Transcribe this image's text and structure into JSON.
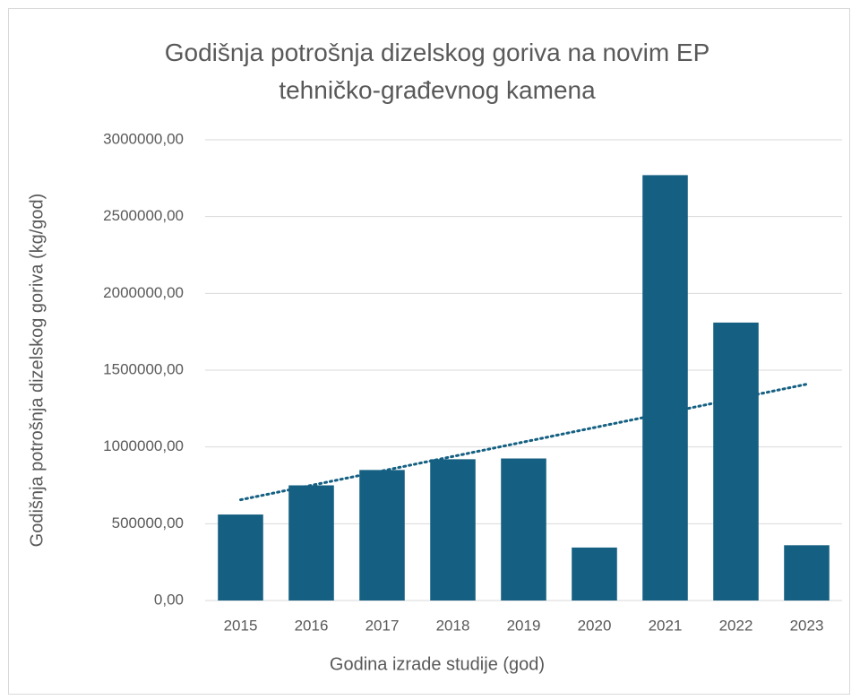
{
  "chart_data": {
    "type": "bar",
    "title": "Godišnja potrošnja dizelskog goriva na novim EP tehničko-građevnog kamena",
    "x_label": "Godina izrade studije (god)",
    "y_label": "Godišnja potrošnja dizelskog goriva (kg/god)",
    "categories": [
      "2015",
      "2016",
      "2017",
      "2018",
      "2019",
      "2020",
      "2021",
      "2022",
      "2023"
    ],
    "values": [
      560000,
      750000,
      850000,
      920000,
      925000,
      345000,
      2770000,
      1810000,
      360000
    ],
    "color": "#156082",
    "ylim": [
      0,
      3000000
    ],
    "yticks": [
      {
        "value": 0,
        "label": "0,00"
      },
      {
        "value": 500000,
        "label": "500000,00"
      },
      {
        "value": 1000000,
        "label": "1000000,00"
      },
      {
        "value": 1500000,
        "label": "1500000,00"
      },
      {
        "value": 2000000,
        "label": "2000000,00"
      },
      {
        "value": 2500000,
        "label": "2500000,00"
      },
      {
        "value": 3000000,
        "label": "3000000,00"
      }
    ],
    "grid": true,
    "trendline": "linear"
  }
}
